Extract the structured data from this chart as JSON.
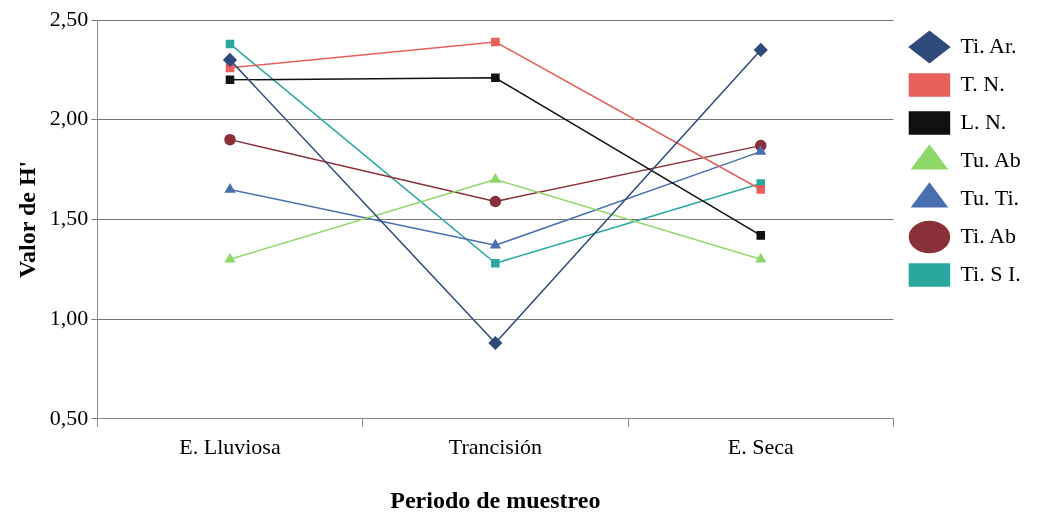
{
  "chart_data": {
    "type": "line",
    "xlabel": "Periodo de muestreo",
    "ylabel": "Valor de H'",
    "categories": [
      "E. Lluviosa",
      "Trancisión",
      "E. Seca"
    ],
    "ylim": [
      0.5,
      2.5
    ],
    "yticks": [
      {
        "value": 0.5,
        "label": "0,50"
      },
      {
        "value": 1,
        "label": "1,00"
      },
      {
        "value": 1.5,
        "label": "1,50"
      },
      {
        "value": 2,
        "label": "2,00"
      },
      {
        "value": 2.5,
        "label": "2,50"
      }
    ],
    "grid": "y",
    "legend": "right",
    "line_style": "solid",
    "series": [
      {
        "name": "Ti. Ar.",
        "color": "#2e4a7a",
        "marker": "diamond",
        "values": [
          2.3,
          0.88,
          2.35
        ]
      },
      {
        "name": "T. N.",
        "color": "#e8605c",
        "marker": "square",
        "values": [
          2.26,
          2.39,
          1.65
        ]
      },
      {
        "name": "L. N.",
        "color": "#111111",
        "marker": "square",
        "values": [
          2.2,
          2.21,
          1.42
        ]
      },
      {
        "name": "Tu. Ab",
        "color": "#8ed86a",
        "marker": "triangle",
        "values": [
          1.3,
          1.7,
          1.3
        ]
      },
      {
        "name": "Tu. Ti.",
        "color": "#4a6fb0",
        "marker": "triangle",
        "values": [
          1.65,
          1.37,
          1.84
        ]
      },
      {
        "name": "Ti. Ab",
        "color": "#8a3038",
        "marker": "circle",
        "values": [
          1.9,
          1.59,
          1.87
        ]
      },
      {
        "name": "Ti. S I.",
        "color": "#2aa8a0",
        "marker": "square",
        "values": [
          2.38,
          1.28,
          1.68
        ]
      }
    ]
  }
}
